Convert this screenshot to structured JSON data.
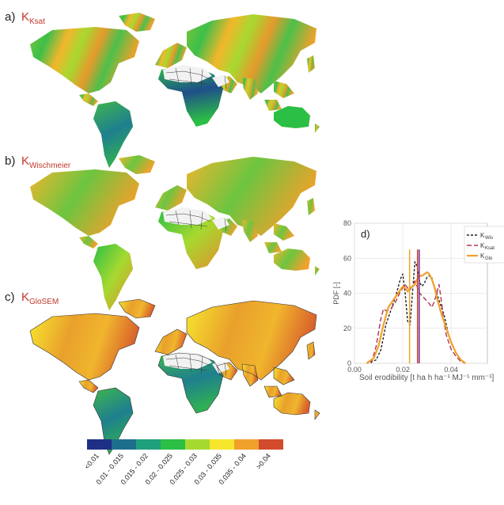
{
  "panels": [
    {
      "letter": "a)",
      "k": "K",
      "sub": "Ksat"
    },
    {
      "letter": "b)",
      "k": "K",
      "sub": "Wischmeier"
    },
    {
      "letter": "c)",
      "k": "K",
      "sub": "GloSEM"
    }
  ],
  "colors": {
    "label_red": "#c0392b",
    "ocean": "#ffffff",
    "desert": "#f2f2f2",
    "border": "#333333"
  },
  "legend": {
    "classes": [
      {
        "label": "<0.01",
        "color": "#1f2f87"
      },
      {
        "label": "0.01 - 0.015",
        "color": "#1e6e8e"
      },
      {
        "label": "0.015 - 0.02",
        "color": "#1fa07c"
      },
      {
        "label": "0.02 - 0.025",
        "color": "#2bbf45"
      },
      {
        "label": "0.025 - 0.03",
        "color": "#a6d930"
      },
      {
        "label": "0.03 - 0.035",
        "color": "#f7e62e"
      },
      {
        "label": "0.035 - 0.04",
        "color": "#f0a12b"
      },
      {
        "label": ">0.04",
        "color": "#d24b2c"
      }
    ]
  },
  "chart_data": {
    "type": "line",
    "panel_label": "d)",
    "xlabel": "Soil erodibility [t ha h ha⁻¹ MJ⁻¹ mm⁻¹]",
    "ylabel": "PDF [-]",
    "xlim": [
      0,
      0.055
    ],
    "ylim": [
      0,
      80
    ],
    "xticks": [
      {
        "v": 0,
        "label": "0.00"
      },
      {
        "v": 0.02,
        "label": "0.02"
      },
      {
        "v": 0.04,
        "label": "0.04"
      }
    ],
    "yticks": [
      {
        "v": 0,
        "label": "0"
      },
      {
        "v": 20,
        "label": "20"
      },
      {
        "v": 40,
        "label": "40"
      },
      {
        "v": 60,
        "label": "60"
      },
      {
        "v": 80,
        "label": "80"
      }
    ],
    "grid": true,
    "legend_position": "top-right",
    "series": [
      {
        "name": "KWis",
        "legend_k": "K",
        "legend_sub": "Wis",
        "color": "#222222",
        "dash": "3,2",
        "width": 1.4,
        "x": [
          0.005,
          0.009,
          0.011,
          0.013,
          0.015,
          0.017,
          0.019,
          0.02,
          0.021,
          0.022,
          0.023,
          0.024,
          0.025,
          0.026,
          0.027,
          0.028,
          0.029,
          0.03,
          0.031,
          0.032,
          0.033,
          0.034,
          0.035,
          0.036,
          0.037,
          0.038,
          0.039,
          0.04,
          0.042,
          0.044,
          0.046
        ],
        "y": [
          0,
          2,
          8,
          22,
          30,
          38,
          48,
          51,
          40,
          24,
          22,
          40,
          58,
          55,
          46,
          44,
          46,
          49,
          50,
          49,
          44,
          40,
          36,
          32,
          28,
          22,
          16,
          12,
          6,
          2,
          0
        ]
      },
      {
        "name": "KKsat",
        "legend_k": "K",
        "legend_sub": "Ksat",
        "color": "#b5344f",
        "dash": "6,3",
        "width": 1.4,
        "x": [
          0.007,
          0.009,
          0.011,
          0.012,
          0.013,
          0.015,
          0.017,
          0.019,
          0.021,
          0.022,
          0.023,
          0.024,
          0.025,
          0.027,
          0.029,
          0.031,
          0.032,
          0.033,
          0.034,
          0.035,
          0.036,
          0.037,
          0.038,
          0.04,
          0.042,
          0.044,
          0.046
        ],
        "y": [
          0,
          10,
          26,
          31,
          30,
          31,
          35,
          41,
          45,
          43,
          42,
          44,
          47,
          40,
          37,
          34,
          32,
          35,
          40,
          45,
          35,
          24,
          16,
          8,
          4,
          1,
          0
        ]
      },
      {
        "name": "KGloSEM",
        "legend_k": "K",
        "legend_sub": "Glo",
        "color": "#f0a12b",
        "dash": "",
        "width": 2.2,
        "x": [
          0.005,
          0.008,
          0.01,
          0.012,
          0.014,
          0.016,
          0.018,
          0.02,
          0.021,
          0.022,
          0.023,
          0.024,
          0.025,
          0.026,
          0.027,
          0.028,
          0.029,
          0.03,
          0.031,
          0.032,
          0.033,
          0.034,
          0.035,
          0.036,
          0.037,
          0.038,
          0.04,
          0.042,
          0.044,
          0.046
        ],
        "y": [
          0,
          3,
          10,
          22,
          32,
          36,
          40,
          44,
          43,
          41,
          43,
          44,
          45,
          48,
          50,
          50,
          51,
          52,
          51,
          48,
          44,
          38,
          33,
          28,
          24,
          20,
          12,
          6,
          2,
          0
        ]
      }
    ],
    "vlines": [
      {
        "x": 0.0228,
        "color": "#f0a12b"
      },
      {
        "x": 0.0261,
        "color": "#c0392b"
      },
      {
        "x": 0.0268,
        "color": "#7b2d8e"
      }
    ]
  }
}
